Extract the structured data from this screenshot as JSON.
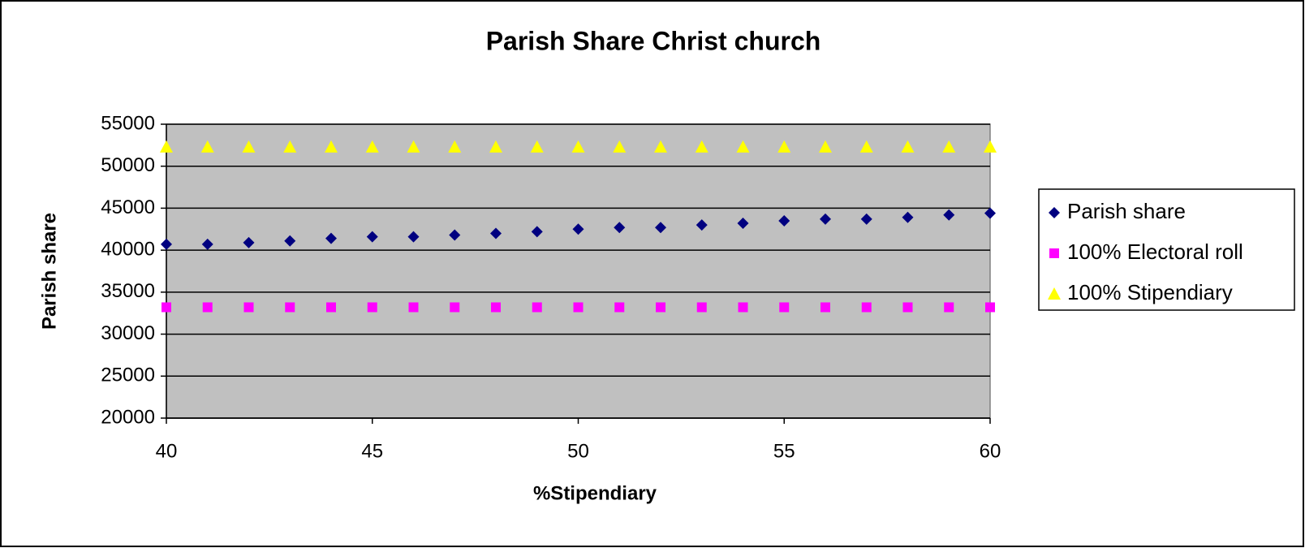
{
  "chart_data": {
    "type": "scatter",
    "title": "Parish Share Christ church",
    "xlabel": "%Stipendiary",
    "ylabel": "Parish share",
    "x": [
      40,
      41,
      42,
      43,
      44,
      45,
      46,
      47,
      48,
      49,
      50,
      51,
      52,
      53,
      54,
      55,
      56,
      57,
      58,
      59,
      60
    ],
    "series": [
      {
        "name": "Parish share",
        "color": "#000080",
        "marker": "diamond",
        "values": [
          40700,
          40700,
          40900,
          41100,
          41400,
          41600,
          41600,
          41800,
          42000,
          42200,
          42500,
          42700,
          42700,
          43000,
          43200,
          43500,
          43700,
          43700,
          43900,
          44200,
          44400
        ]
      },
      {
        "name": "100% Electoral roll",
        "color": "#ff00ff",
        "marker": "square",
        "values": [
          33200,
          33200,
          33200,
          33200,
          33200,
          33200,
          33200,
          33200,
          33200,
          33200,
          33200,
          33200,
          33200,
          33200,
          33200,
          33200,
          33200,
          33200,
          33200,
          33200,
          33200
        ]
      },
      {
        "name": "100% Stipendiary",
        "color": "#ffff00",
        "marker": "triangle",
        "values": [
          52300,
          52300,
          52300,
          52300,
          52300,
          52300,
          52300,
          52300,
          52300,
          52300,
          52300,
          52300,
          52300,
          52300,
          52300,
          52300,
          52300,
          52300,
          52300,
          52300,
          52300
        ]
      }
    ],
    "xlim": [
      40,
      60
    ],
    "xticks": [
      40,
      45,
      50,
      55,
      60
    ],
    "ylim": [
      20000,
      55000
    ],
    "yticks": [
      20000,
      25000,
      30000,
      35000,
      40000,
      45000,
      50000,
      55000
    ],
    "grid": true,
    "legend": "right",
    "plot_background": "#c0c0c0"
  }
}
